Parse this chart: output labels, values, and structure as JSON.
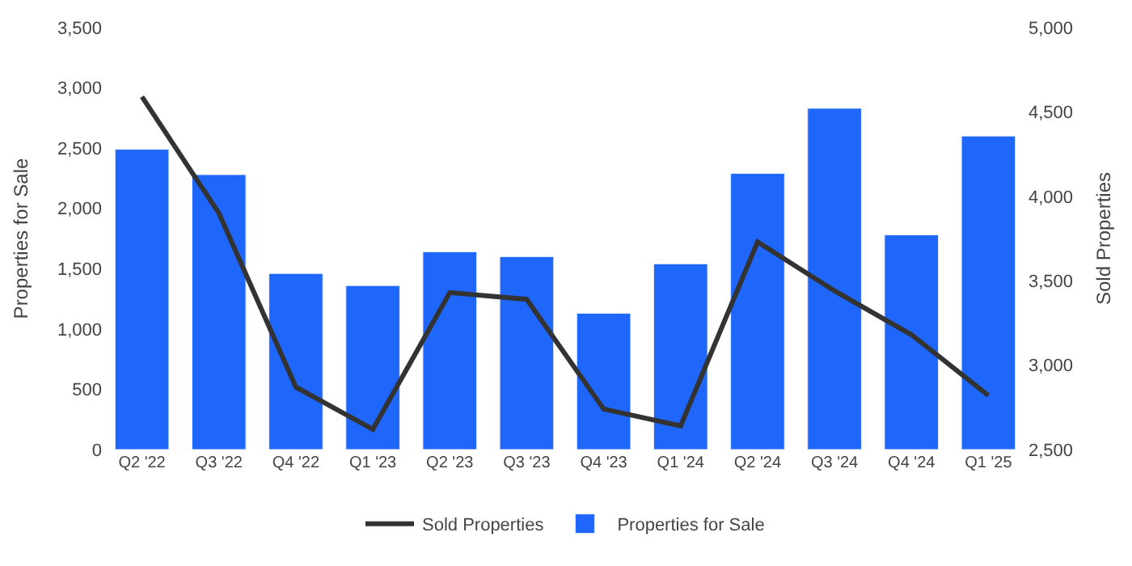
{
  "chart_data": {
    "type": "bar",
    "categories": [
      "Q2 '22",
      "Q3 '22",
      "Q4 '22",
      "Q1 '23",
      "Q2 '23",
      "Q3 '23",
      "Q4 '23",
      "Q1 '24",
      "Q2 '24",
      "Q3 '24",
      "Q4 '24",
      "Q1 '25"
    ],
    "series": [
      {
        "name": "Sold Properties",
        "type": "line",
        "axis": "y2",
        "color": "#333333",
        "values": [
          4590,
          3900,
          2870,
          2620,
          3430,
          3390,
          2740,
          2640,
          3730,
          3440,
          3180,
          2820
        ]
      },
      {
        "name": "Properties for Sale",
        "color": "#1f67fa",
        "values": [
          2490,
          2280,
          1460,
          1360,
          1640,
          1600,
          1130,
          1540,
          2290,
          2830,
          1780,
          2600
        ]
      }
    ],
    "ylabel": "Properties for Sale",
    "y2label": "Sold Properties",
    "ylim": [
      0,
      3500
    ],
    "yticks": [
      0,
      {
        "value": 500,
        "label": "500"
      },
      {
        "value": 1000,
        "label": "1,000"
      },
      {
        "value": 1500,
        "label": "1,500"
      },
      {
        "value": 2000,
        "label": "2,000"
      },
      {
        "value": 2500,
        "label": "2,500"
      },
      {
        "value": 3000,
        "label": "3,000"
      },
      {
        "value": 3500,
        "label": "3,500"
      }
    ],
    "y2lim": [
      2500,
      5000
    ],
    "y2ticks": [
      {
        "value": 2500,
        "label": "2,500"
      },
      {
        "value": 3000,
        "label": "3,000"
      },
      {
        "value": 3500,
        "label": "3,500"
      },
      {
        "value": 4000,
        "label": "4,000"
      },
      {
        "value": 4500,
        "label": "4,500"
      },
      {
        "value": 5000,
        "label": "5,000"
      }
    ],
    "grid": false,
    "legend": "bottom",
    "marker": "none",
    "line_style": "solid"
  }
}
